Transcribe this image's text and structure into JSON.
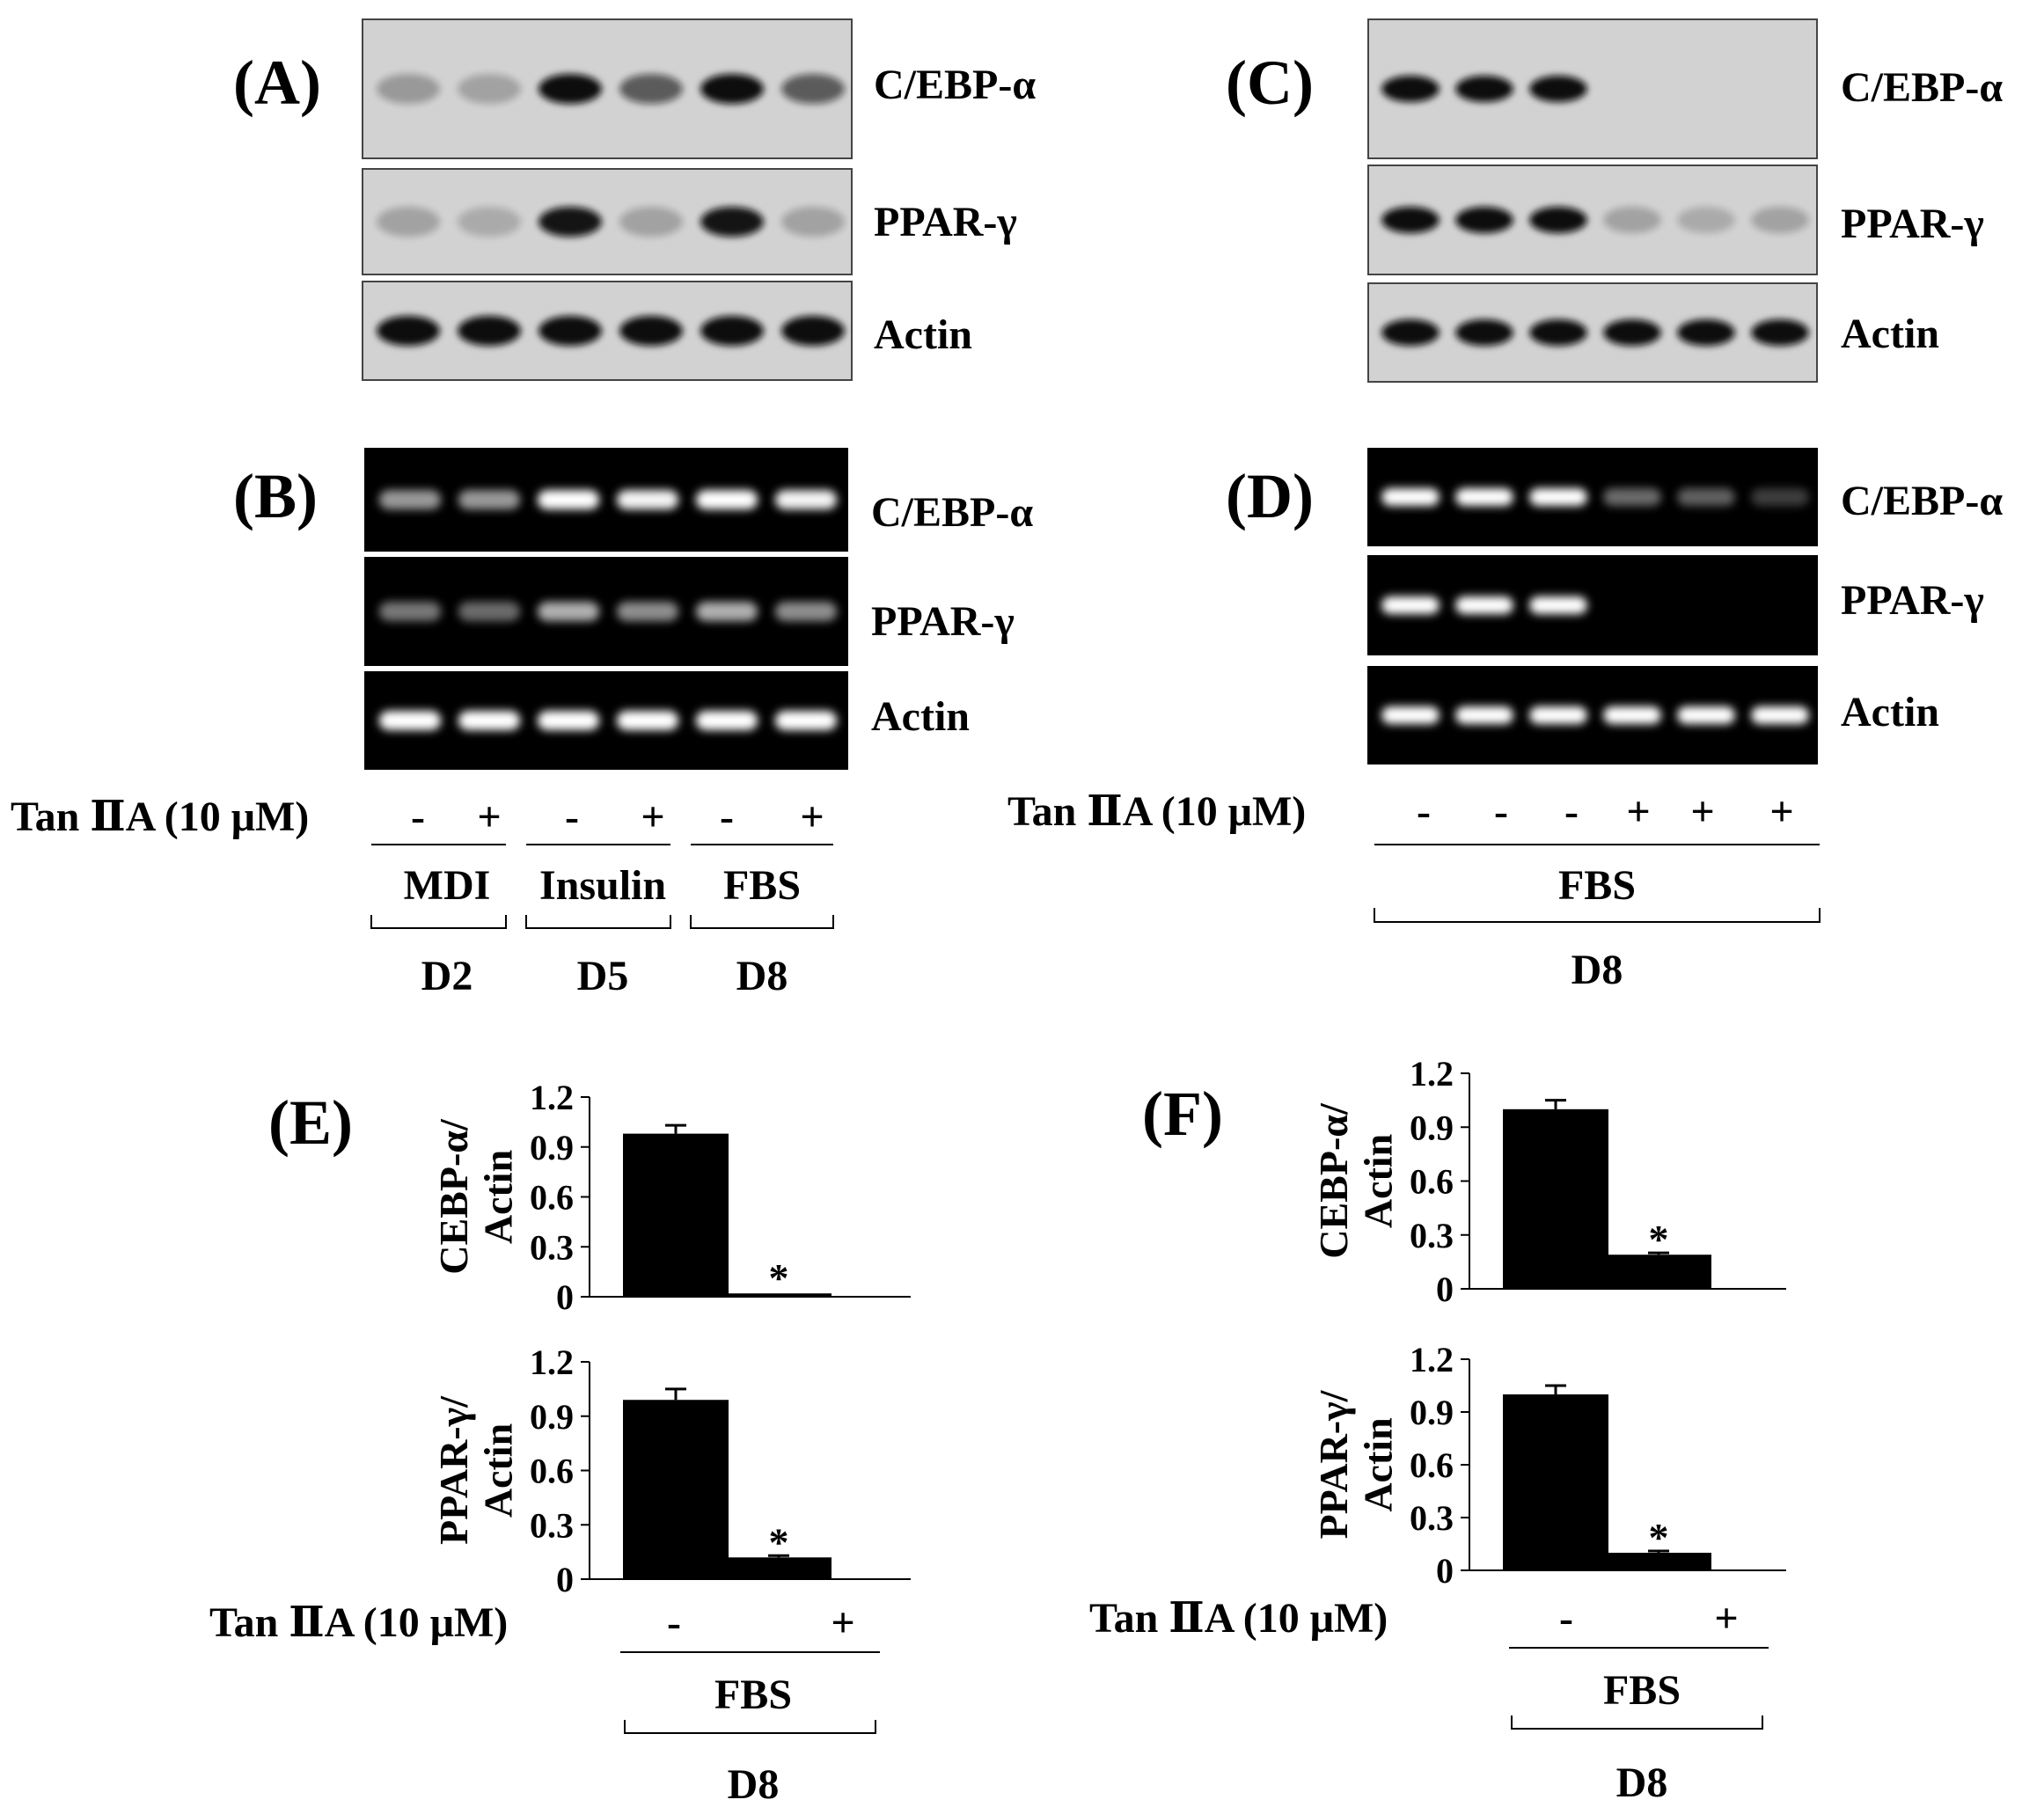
{
  "panels": {
    "A": {
      "letter": "(A)",
      "blot_type": "western",
      "rows": [
        {
          "label": "C/EBP-α",
          "bands": [
            0.15,
            0.1,
            1.0,
            0.5,
            1.0,
            0.5
          ]
        },
        {
          "label": "PPAR-γ",
          "bands": [
            0.1,
            0.05,
            0.9,
            0.1,
            0.9,
            0.1
          ]
        },
        {
          "label": "Actin",
          "bands": [
            1.0,
            1.0,
            1.0,
            1.0,
            1.0,
            1.0
          ]
        }
      ]
    },
    "B": {
      "letter": "(B)",
      "blot_type": "rt-pcr",
      "rows": [
        {
          "label": "C/EBP-α",
          "bands": [
            0.5,
            0.5,
            1.0,
            0.9,
            1.0,
            0.9
          ]
        },
        {
          "label": "PPAR-γ",
          "bands": [
            0.35,
            0.3,
            0.6,
            0.45,
            0.6,
            0.45
          ]
        },
        {
          "label": "Actin",
          "bands": [
            1.0,
            1.0,
            1.0,
            1.0,
            1.0,
            1.0
          ]
        }
      ],
      "treatment_label": "Tan ⅡA (10 μM)",
      "signs": [
        "-",
        "+",
        "-",
        "+",
        "-",
        "+"
      ],
      "groups": [
        {
          "media": "MDI",
          "day": "D2"
        },
        {
          "media": "Insulin",
          "day": "D5"
        },
        {
          "media": "FBS",
          "day": "D8"
        }
      ]
    },
    "C": {
      "letter": "(C)",
      "blot_type": "western",
      "rows": [
        {
          "label": "C/EBP-α",
          "bands": [
            1.0,
            1.0,
            1.0,
            0.0,
            0.0,
            0.0
          ]
        },
        {
          "label": "PPAR-γ",
          "bands": [
            1.0,
            1.0,
            1.0,
            0.1,
            0.05,
            0.1
          ]
        },
        {
          "label": "Actin",
          "bands": [
            1.0,
            1.0,
            1.0,
            1.0,
            1.0,
            1.0
          ]
        }
      ]
    },
    "D": {
      "letter": "(D)",
      "blot_type": "rt-pcr",
      "rows": [
        {
          "label": "C/EBP-α",
          "bands": [
            1.0,
            1.0,
            1.0,
            0.3,
            0.25,
            0.1
          ]
        },
        {
          "label": "PPAR-γ",
          "bands": [
            1.0,
            1.0,
            1.0,
            0.0,
            0.0,
            0.0
          ]
        },
        {
          "label": "Actin",
          "bands": [
            1.0,
            1.0,
            1.0,
            1.0,
            1.0,
            1.0
          ]
        }
      ],
      "treatment_label": "Tan ⅡA (10 μM)",
      "signs": [
        "-",
        "-",
        "-",
        "+",
        "+",
        "+"
      ],
      "media": "FBS",
      "day": "D8"
    },
    "E": {
      "letter": "(E)",
      "treatment_label": "Tan ⅡA  (10 μM)",
      "signs": [
        "-",
        "+"
      ],
      "media": "FBS",
      "day": "D8"
    },
    "F": {
      "letter": "(F)",
      "treatment_label": "Tan ⅡA  (10 μM)",
      "signs": [
        "-",
        "+"
      ],
      "media": "FBS",
      "day": "D8"
    }
  },
  "chart_data": [
    {
      "panel": "E",
      "type": "bar",
      "ylabel": "CEBP-α/ Actin",
      "ylim": [
        0,
        1.2
      ],
      "yticks": [
        "1.2",
        "0.9",
        "0.6",
        "0.3",
        "0"
      ],
      "categories": [
        "-",
        "+"
      ],
      "values": [
        0.98,
        0.02
      ],
      "errors": [
        0.05,
        0.0
      ],
      "annotations": [
        "",
        "*"
      ]
    },
    {
      "panel": "E",
      "type": "bar",
      "ylabel": "PPAR-γ/ Actin",
      "ylim": [
        0,
        1.2
      ],
      "yticks": [
        "1.2",
        "0.9",
        "0.6",
        "0.3",
        "0"
      ],
      "categories": [
        "-",
        "+"
      ],
      "values": [
        0.99,
        0.12
      ],
      "errors": [
        0.06,
        0.01
      ],
      "annotations": [
        "",
        "*"
      ]
    },
    {
      "panel": "F",
      "type": "bar",
      "ylabel": "CEBP-α/ Actin",
      "ylim": [
        0,
        1.2
      ],
      "yticks": [
        "1.2",
        "0.9",
        "0.6",
        "0.3",
        "0"
      ],
      "categories": [
        "-",
        "+"
      ],
      "values": [
        1.0,
        0.19
      ],
      "errors": [
        0.05,
        0.01
      ],
      "annotations": [
        "",
        "*"
      ]
    },
    {
      "panel": "F",
      "type": "bar",
      "ylabel": "PPAR-γ/ Actin",
      "ylim": [
        0,
        1.2
      ],
      "yticks": [
        "1.2",
        "0.9",
        "0.6",
        "0.3",
        "0"
      ],
      "categories": [
        "-",
        "+"
      ],
      "values": [
        1.0,
        0.1
      ],
      "errors": [
        0.05,
        0.01
      ],
      "annotations": [
        "",
        "*"
      ]
    }
  ]
}
